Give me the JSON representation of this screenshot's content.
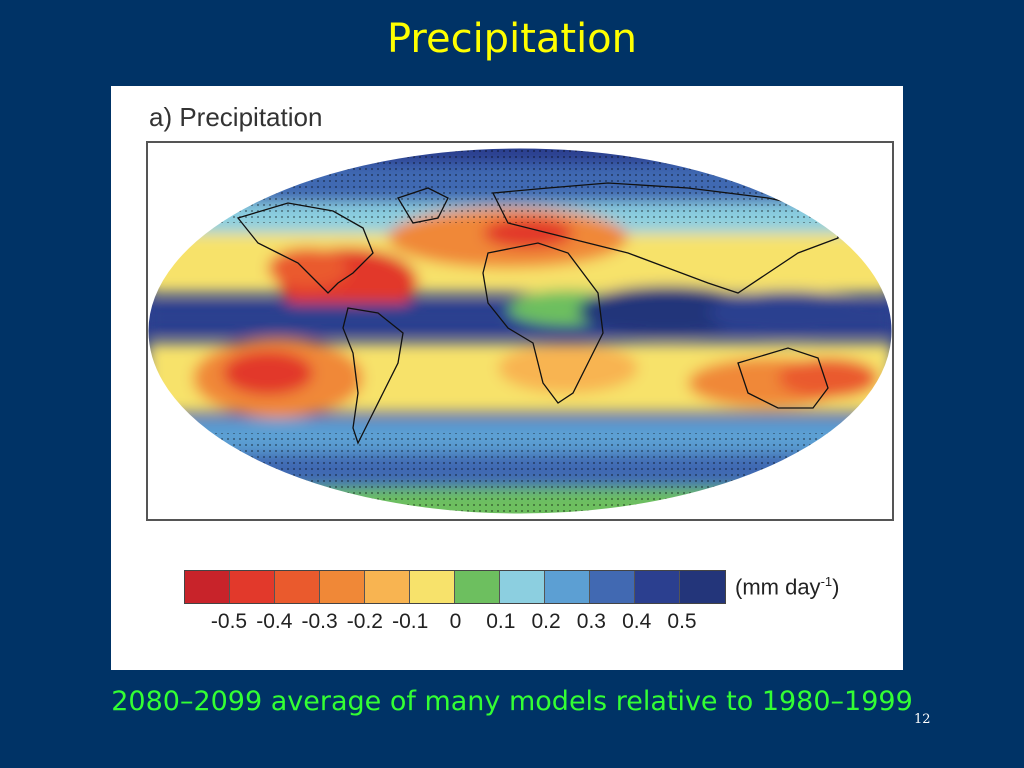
{
  "slide": {
    "title": "Precipitation",
    "caption": "2080–2099 average of many models relative to 1980–1999",
    "page_number": "12"
  },
  "figure": {
    "panel_label": "a) Precipitation",
    "colorbar": {
      "unit_base": "(mm day",
      "unit_exp": "-1",
      "unit_close": ")",
      "colors": [
        "#c8232a",
        "#e2392b",
        "#ea5a2d",
        "#f08837",
        "#f8b451",
        "#f7e26b",
        "#6dbf5f",
        "#8ccfe0",
        "#5c9fd3",
        "#4169b2",
        "#2b3f8f",
        "#23357a"
      ],
      "ticks": [
        "-0.5",
        "-0.4",
        "-0.3",
        "-0.2",
        "-0.1",
        "0",
        "0.1",
        "0.2",
        "0.3",
        "0.4",
        "0.5"
      ]
    }
  },
  "colors": {
    "background": "#003366",
    "title": "#ffff00",
    "caption": "#33ff33"
  }
}
